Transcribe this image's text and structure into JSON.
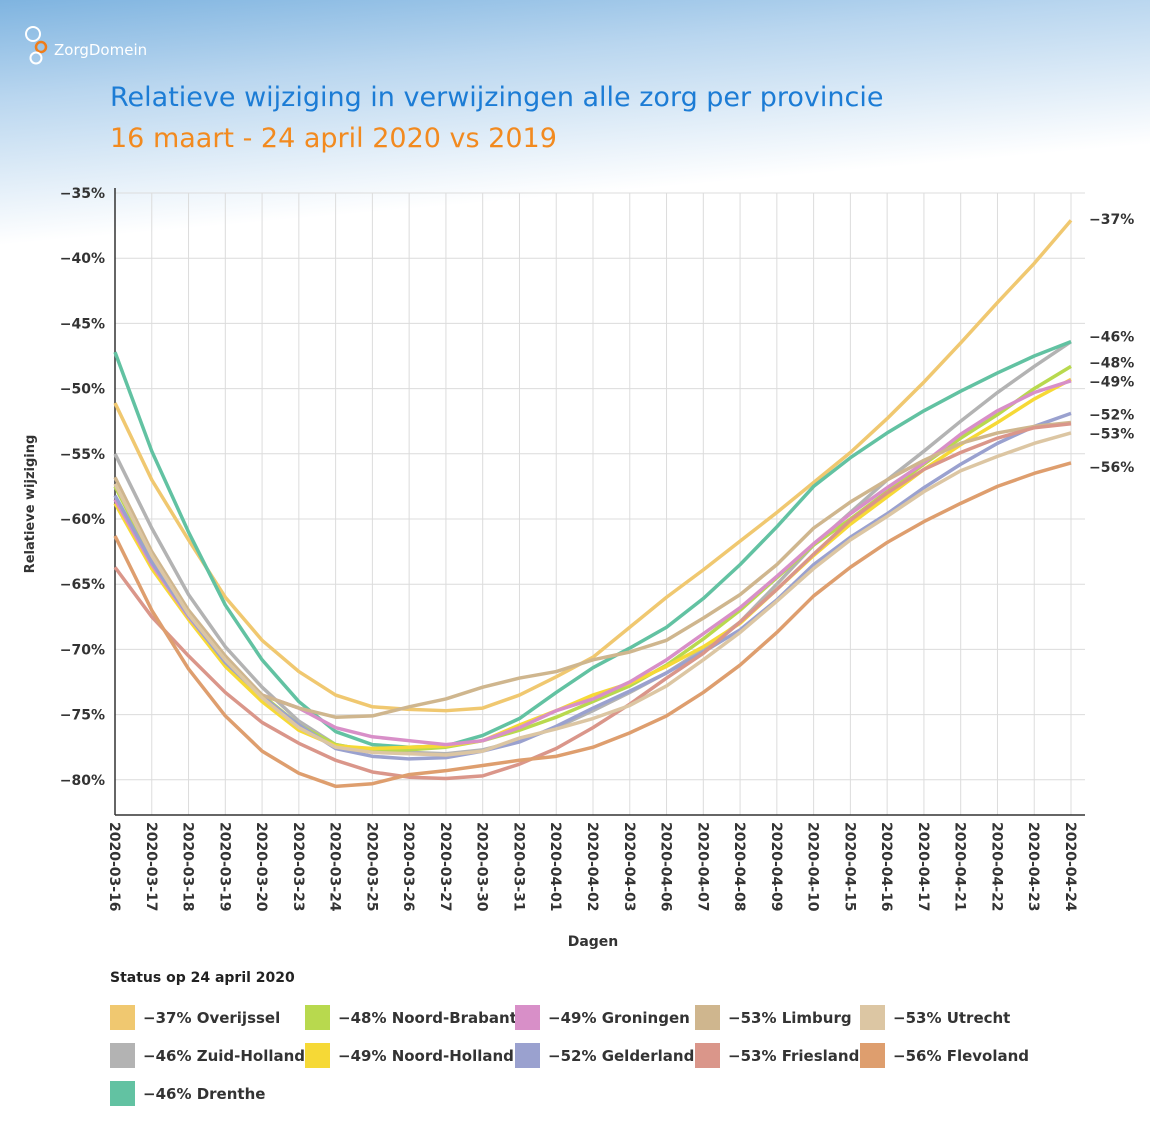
{
  "brand": {
    "name": "ZorgDomein",
    "accent": "#f07d1a"
  },
  "chart_data": {
    "type": "line",
    "title": "Relatieve wijziging in verwijzingen alle zorg per provincie",
    "subtitle": "16 maart - 24 april 2020 vs 2019",
    "xlabel": "Dagen",
    "ylabel": "Relatieve wijziging",
    "ylim": [
      -85,
      -35
    ],
    "yticks": [
      "−35%",
      "−40%",
      "−45%",
      "−50%",
      "−55%",
      "−60%",
      "−65%",
      "−70%",
      "−75%",
      "−80%"
    ],
    "ytick_values": [
      -35,
      -40,
      -45,
      -50,
      -55,
      -60,
      -65,
      -70,
      -75,
      -80
    ],
    "grid": true,
    "categories": [
      "2020-03-16",
      "2020-03-17",
      "2020-03-18",
      "2020-03-19",
      "2020-03-20",
      "2020-03-23",
      "2020-03-24",
      "2020-03-25",
      "2020-03-26",
      "2020-03-27",
      "2020-03-30",
      "2020-03-31",
      "2020-04-01",
      "2020-04-02",
      "2020-04-03",
      "2020-04-06",
      "2020-04-07",
      "2020-04-08",
      "2020-04-09",
      "2020-04-10",
      "2020-04-15",
      "2020-04-16",
      "2020-04-17",
      "2020-04-21",
      "2020-04-22",
      "2020-04-23",
      "2020-04-24"
    ],
    "end_labels": [
      {
        "text": "−37%",
        "value": -37
      },
      {
        "text": "−46%",
        "value": -46
      },
      {
        "text": "−48%",
        "value": -48
      },
      {
        "text": "−49%",
        "value": -49
      },
      {
        "text": "−52%",
        "value": -52
      },
      {
        "text": "−53%",
        "value": -53
      },
      {
        "text": "−56%",
        "value": -56
      }
    ],
    "legend_title": "Status op 24 april 2020",
    "legend_position": "bottom",
    "series": [
      {
        "name": "−37% Overijssel",
        "color": "#f0c870",
        "values": [
          -51.1,
          -57,
          -61.6,
          -66,
          -69.3,
          -71.7,
          -73.5,
          -74.4,
          -74.6,
          -74.7,
          -74.5,
          -73.5,
          -72.1,
          -70.6,
          -68.3,
          -66,
          -63.9,
          -61.7,
          -59.5,
          -57.2,
          -54.9,
          -52.3,
          -49.5,
          -46.5,
          -43.4,
          -40.4,
          -37.1
        ]
      },
      {
        "name": "−46% Zuid-Holland",
        "color": "#b3b3b3",
        "values": [
          -55,
          -60.7,
          -65.8,
          -69.8,
          -72.9,
          -75.5,
          -77.3,
          -77.8,
          -77.9,
          -78,
          -77.7,
          -77,
          -76,
          -74.7,
          -73.3,
          -71.8,
          -70,
          -67.9,
          -65,
          -62,
          -59.5,
          -57,
          -54.8,
          -52.5,
          -50.3,
          -48.3,
          -46.4
        ]
      },
      {
        "name": "−46% Drenthe",
        "color": "#62c2a2",
        "values": [
          -47.2,
          -54.8,
          -61,
          -66.6,
          -70.8,
          -74,
          -76.3,
          -77.3,
          -77.5,
          -77.4,
          -76.6,
          -75.3,
          -73.3,
          -71.4,
          -69.9,
          -68.3,
          -66.1,
          -63.5,
          -60.6,
          -57.5,
          -55.3,
          -53.4,
          -51.7,
          -50.2,
          -48.8,
          -47.5,
          -46.4
        ]
      },
      {
        "name": "−48% Noord-Brabant",
        "color": "#b8d94e",
        "values": [
          -57.5,
          -63,
          -67.4,
          -70.7,
          -73.5,
          -75.8,
          -77.3,
          -77.8,
          -77.7,
          -77.5,
          -77,
          -76.2,
          -75.2,
          -74,
          -72.8,
          -71.2,
          -69.2,
          -67,
          -64.5,
          -62,
          -60,
          -57.9,
          -55.8,
          -53.8,
          -52,
          -50,
          -48.3
        ]
      },
      {
        "name": "−49% Noord-Holland",
        "color": "#f6d936",
        "values": [
          -58.8,
          -63.8,
          -67.7,
          -71.3,
          -74,
          -76.2,
          -77.4,
          -77.6,
          -77.5,
          -77.4,
          -77,
          -75.8,
          -74.7,
          -73.5,
          -72.6,
          -71.3,
          -69.8,
          -68,
          -65.4,
          -62.8,
          -60.4,
          -58.3,
          -56.2,
          -54.3,
          -52.6,
          -50.8,
          -49.3
        ]
      },
      {
        "name": "−49% Groningen",
        "color": "#d88fc8",
        "values": [
          -58.5,
          -63.5,
          -67.5,
          -70.9,
          -73.5,
          -74.5,
          -76,
          -76.7,
          -77,
          -77.3,
          -77,
          -76,
          -74.7,
          -73.8,
          -72.5,
          -70.8,
          -68.8,
          -66.8,
          -64.4,
          -61.9,
          -59.6,
          -57.6,
          -55.7,
          -53.5,
          -51.7,
          -50.3,
          -49.4
        ]
      },
      {
        "name": "−52% Gelderland",
        "color": "#9aa1cf",
        "values": [
          -58.2,
          -63.3,
          -67.4,
          -71,
          -73.6,
          -75.8,
          -77.6,
          -78.2,
          -78.4,
          -78.3,
          -77.8,
          -77.1,
          -75.9,
          -74.5,
          -73.2,
          -71.8,
          -70.2,
          -68.5,
          -66.2,
          -63.5,
          -61.4,
          -59.6,
          -57.6,
          -55.8,
          -54.2,
          -52.9,
          -51.9
        ]
      },
      {
        "name": "−53% Limburg",
        "color": "#cfb68e",
        "values": [
          -56.8,
          -62.5,
          -67,
          -70.5,
          -73.5,
          -74.5,
          -75.2,
          -75.1,
          -74.4,
          -73.8,
          -72.9,
          -72.2,
          -71.7,
          -70.8,
          -70.2,
          -69.3,
          -67.6,
          -65.8,
          -63.5,
          -60.7,
          -58.7,
          -57,
          -55.5,
          -54.2,
          -53.4,
          -52.9,
          -52.6
        ]
      },
      {
        "name": "−53% Friesland",
        "color": "#da968a",
        "values": [
          -63.7,
          -67.5,
          -70.5,
          -73.3,
          -75.6,
          -77.2,
          -78.5,
          -79.4,
          -79.8,
          -79.9,
          -79.7,
          -78.8,
          -77.6,
          -76,
          -74.2,
          -72.2,
          -70.3,
          -67.9,
          -65.4,
          -62.7,
          -60.1,
          -58,
          -56.2,
          -54.9,
          -53.8,
          -53,
          -52.7
        ]
      },
      {
        "name": "−53% Utrecht",
        "color": "#dcc6a3",
        "values": [
          -57.3,
          -62.8,
          -67.3,
          -70.8,
          -73.7,
          -76,
          -77.5,
          -77.9,
          -78,
          -78.1,
          -77.8,
          -76.8,
          -76.1,
          -75.3,
          -74.3,
          -72.8,
          -70.8,
          -68.7,
          -66.3,
          -63.8,
          -61.6,
          -59.8,
          -57.9,
          -56.3,
          -55.2,
          -54.2,
          -53.4
        ]
      },
      {
        "name": "−56% Flevoland",
        "color": "#de9e6e",
        "values": [
          -61.3,
          -67,
          -71.5,
          -75.1,
          -77.8,
          -79.5,
          -80.5,
          -80.3,
          -79.6,
          -79.3,
          -78.9,
          -78.5,
          -78.2,
          -77.5,
          -76.4,
          -75.1,
          -73.3,
          -71.2,
          -68.7,
          -65.9,
          -63.7,
          -61.8,
          -60.2,
          -58.8,
          -57.5,
          -56.5,
          -55.7
        ]
      }
    ],
    "legend_order": [
      0,
      3,
      5,
      7,
      9,
      1,
      4,
      6,
      8,
      10,
      2
    ]
  }
}
